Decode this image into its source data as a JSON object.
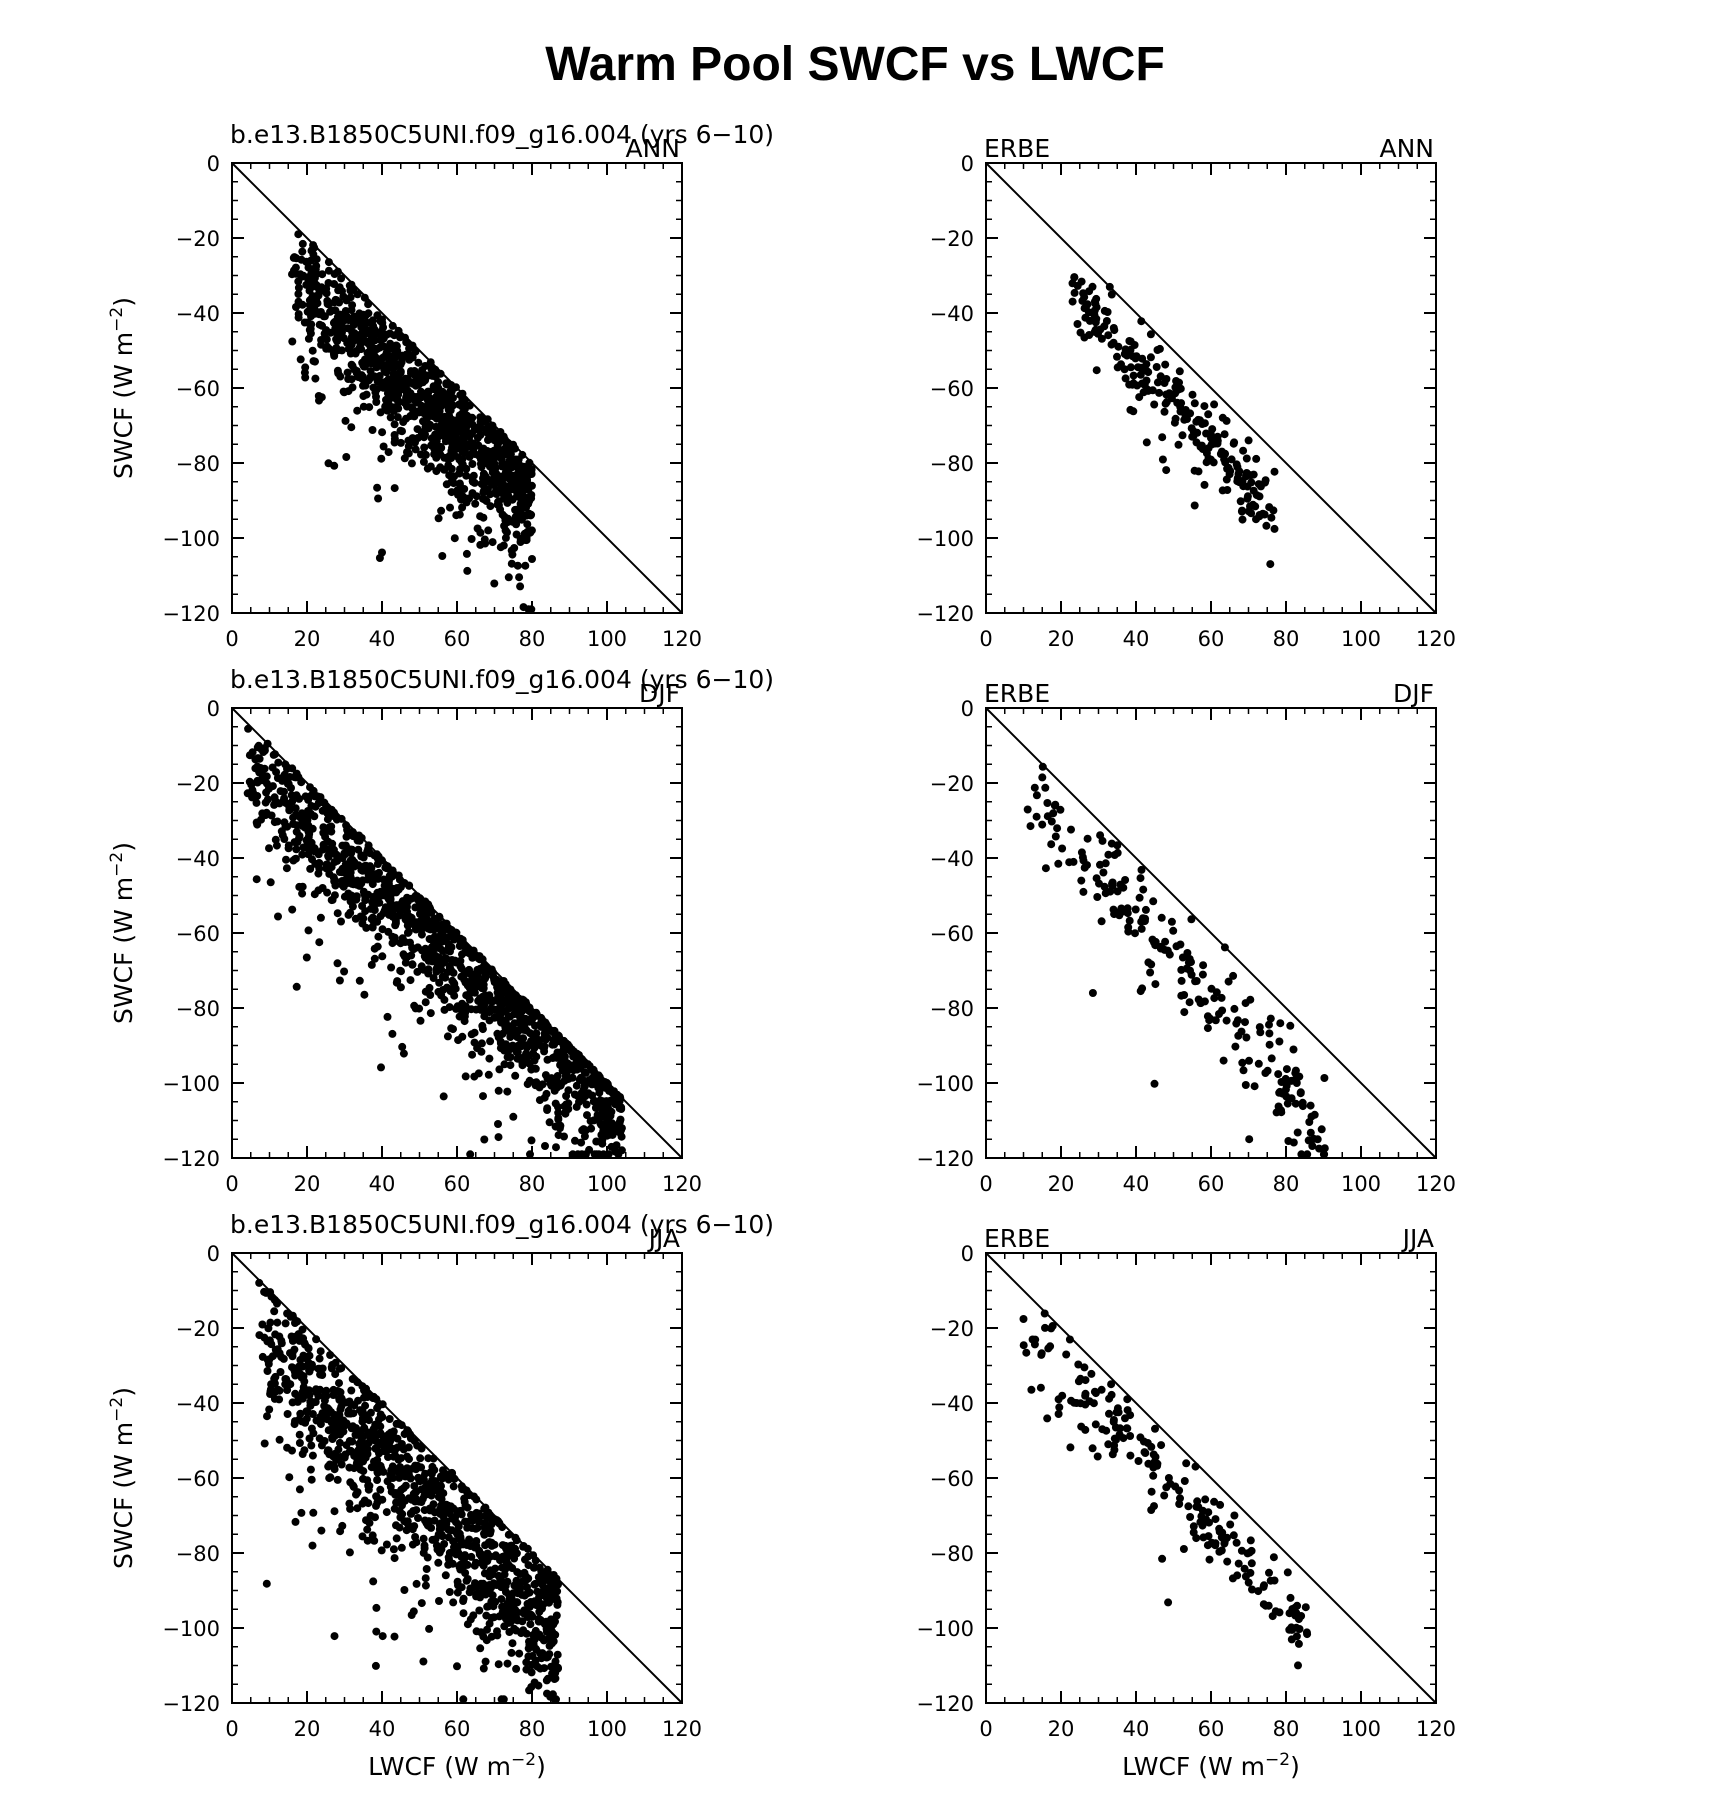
{
  "figure": {
    "title": "Warm Pool SWCF vs LWCF"
  },
  "chart_data": [
    {
      "type": "scatter",
      "left_label": "b.e13.B1850C5UNI.f09_g16.004 (yrs 6-10)",
      "right_label": "ANN",
      "xlabel": "",
      "ylabel": "SWCF (W m-2)",
      "xlim": [
        0,
        120
      ],
      "ylim": [
        -120,
        0
      ],
      "xticks": [
        "0",
        "20",
        "40",
        "60",
        "80",
        "100",
        "120"
      ],
      "yticks": [
        "0",
        "-20",
        "-40",
        "-60",
        "-80",
        "-100",
        "-120"
      ],
      "reference_line": "1:1 diagonal",
      "cloud": {
        "n": 1100,
        "seed": 11,
        "xmin": 16,
        "xmax": 80,
        "ycoef": -0.95,
        "ybase": -15,
        "spread": 7,
        "tail": 0.18
      }
    },
    {
      "type": "scatter",
      "left_label": "ERBE",
      "right_label": "ANN",
      "xlabel": "",
      "ylabel": "",
      "xlim": [
        0,
        120
      ],
      "ylim": [
        -120,
        0
      ],
      "xticks": [
        "0",
        "20",
        "40",
        "60",
        "80",
        "100",
        "120"
      ],
      "yticks": [
        "0",
        "-20",
        "-40",
        "-60",
        "-80",
        "-100",
        "-120"
      ],
      "reference_line": "1:1 diagonal",
      "cloud": {
        "n": 240,
        "seed": 23,
        "xmin": 23,
        "xmax": 77,
        "ycoef": -1.1,
        "ybase": -9,
        "spread": 5,
        "tail": 0.05
      }
    },
    {
      "type": "scatter",
      "left_label": "b.e13.B1850C5UNI.f09_g16.004 (yrs 6-10)",
      "right_label": "DJF",
      "xlabel": "",
      "ylabel": "SWCF (W m-2)",
      "xlim": [
        0,
        120
      ],
      "ylim": [
        -120,
        0
      ],
      "xticks": [
        "0",
        "20",
        "40",
        "60",
        "80",
        "100",
        "120"
      ],
      "yticks": [
        "0",
        "-20",
        "-40",
        "-60",
        "-80",
        "-100",
        "-120"
      ],
      "reference_line": "1:1 diagonal",
      "cloud": {
        "n": 1300,
        "seed": 31,
        "xmin": 4,
        "xmax": 104,
        "ycoef": -0.93,
        "ybase": -12,
        "spread": 8,
        "tail": 0.12
      }
    },
    {
      "type": "scatter",
      "left_label": "ERBE",
      "right_label": "DJF",
      "xlabel": "",
      "ylabel": "",
      "xlim": [
        0,
        120
      ],
      "ylim": [
        -120,
        0
      ],
      "xticks": [
        "0",
        "20",
        "40",
        "60",
        "80",
        "100",
        "120"
      ],
      "yticks": [
        "0",
        "-20",
        "-40",
        "-60",
        "-80",
        "-100",
        "-120"
      ],
      "reference_line": "1:1 diagonal",
      "cloud": {
        "n": 220,
        "seed": 41,
        "xmin": 10,
        "xmax": 91,
        "ycoef": -1.12,
        "ybase": -10,
        "spread": 7,
        "tail": 0.08
      }
    },
    {
      "type": "scatter",
      "left_label": "b.e13.B1850C5UNI.f09_g16.004 (yrs 6-10)",
      "right_label": "JJA",
      "xlabel": "LWCF (W m-2)",
      "ylabel": "SWCF (W m-2)",
      "xlim": [
        0,
        120
      ],
      "ylim": [
        -120,
        0
      ],
      "xticks": [
        "0",
        "20",
        "40",
        "60",
        "80",
        "100",
        "120"
      ],
      "yticks": [
        "0",
        "-20",
        "-40",
        "-60",
        "-80",
        "-100",
        "-120"
      ],
      "reference_line": "1:1 diagonal",
      "cloud": {
        "n": 1100,
        "seed": 53,
        "xmin": 7,
        "xmax": 87,
        "ycoef": -0.97,
        "ybase": -15,
        "spread": 9,
        "tail": 0.15
      }
    },
    {
      "type": "scatter",
      "left_label": "ERBE",
      "right_label": "JJA",
      "xlabel": "LWCF (W m-2)",
      "ylabel": "",
      "xlim": [
        0,
        120
      ],
      "ylim": [
        -120,
        0
      ],
      "xticks": [
        "0",
        "20",
        "40",
        "60",
        "80",
        "100",
        "120"
      ],
      "yticks": [
        "0",
        "-20",
        "-40",
        "-60",
        "-80",
        "-100",
        "-120"
      ],
      "reference_line": "1:1 diagonal",
      "cloud": {
        "n": 200,
        "seed": 67,
        "xmin": 10,
        "xmax": 86,
        "ycoef": -1.05,
        "ybase": -11,
        "spread": 5,
        "tail": 0.05
      }
    }
  ]
}
